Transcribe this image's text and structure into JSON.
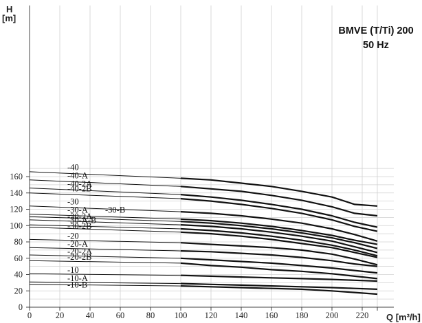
{
  "chart_data": {
    "type": "line",
    "title": "BMVE (T/Ti) 200",
    "subtitle": "50 Hz",
    "ylabel_line1": "H",
    "ylabel_line2": "[m]",
    "xlabel": "Q [m³/h]",
    "xlim": [
      0,
      230
    ],
    "ylim": [
      0,
      170
    ],
    "x_ticks": [
      0,
      20,
      40,
      60,
      80,
      100,
      120,
      140,
      160,
      180,
      200,
      220
    ],
    "y_ticks": [
      0,
      20,
      40,
      60,
      80,
      100,
      120,
      140,
      160
    ],
    "grid": true,
    "series": [
      {
        "name": "-40",
        "thin": [
          [
            0,
            166
          ],
          [
            100,
            158
          ]
        ],
        "thick": [
          [
            100,
            158
          ],
          [
            120,
            156
          ],
          [
            140,
            152
          ],
          [
            160,
            148
          ],
          [
            180,
            142
          ],
          [
            200,
            135
          ],
          [
            215,
            126
          ],
          [
            230,
            124
          ]
        ]
      },
      {
        "name": "-40-A",
        "thin": [
          [
            0,
            156
          ],
          [
            100,
            148
          ]
        ],
        "thick": [
          [
            100,
            148
          ],
          [
            120,
            145
          ],
          [
            140,
            142
          ],
          [
            160,
            137
          ],
          [
            180,
            131
          ],
          [
            200,
            123
          ],
          [
            215,
            115
          ],
          [
            230,
            112
          ]
        ]
      },
      {
        "name": "-40-2A",
        "thin": [
          [
            0,
            146
          ],
          [
            100,
            138
          ]
        ],
        "thick": [
          [
            100,
            138
          ],
          [
            120,
            135
          ],
          [
            140,
            131
          ],
          [
            160,
            126
          ],
          [
            180,
            120
          ],
          [
            200,
            112
          ],
          [
            215,
            104
          ],
          [
            230,
            98
          ]
        ]
      },
      {
        "name": "-40-2B",
        "thin": [
          [
            0,
            140
          ],
          [
            100,
            133
          ]
        ],
        "thick": [
          [
            100,
            133
          ],
          [
            120,
            130
          ],
          [
            140,
            126
          ],
          [
            160,
            121
          ],
          [
            180,
            115
          ],
          [
            200,
            107
          ],
          [
            215,
            99
          ],
          [
            230,
            93
          ]
        ]
      },
      {
        "name": "-30",
        "thin": [
          [
            0,
            124
          ],
          [
            100,
            117
          ]
        ],
        "thick": [
          [
            100,
            117
          ],
          [
            120,
            115
          ],
          [
            140,
            112
          ],
          [
            160,
            108
          ],
          [
            180,
            103
          ],
          [
            200,
            96
          ],
          [
            215,
            89
          ],
          [
            230,
            81
          ]
        ]
      },
      {
        "name": "-30-A",
        "thin": [
          [
            0,
            114
          ],
          [
            100,
            108
          ]
        ],
        "thick": [
          [
            100,
            108
          ],
          [
            120,
            106
          ],
          [
            140,
            103
          ],
          [
            160,
            99
          ],
          [
            180,
            94
          ],
          [
            200,
            88
          ],
          [
            215,
            82
          ],
          [
            230,
            77
          ]
        ]
      },
      {
        "name": "-30-B",
        "thin": [
          [
            0,
            111
          ],
          [
            100,
            105
          ]
        ],
        "thick": [
          [
            100,
            105
          ],
          [
            120,
            103
          ],
          [
            140,
            100
          ],
          [
            160,
            96
          ],
          [
            180,
            91
          ],
          [
            200,
            85
          ],
          [
            215,
            79
          ],
          [
            230,
            72
          ]
        ]
      },
      {
        "name": "-30-2A",
        "thin": [
          [
            0,
            107
          ],
          [
            100,
            101
          ]
        ],
        "thick": [
          [
            100,
            101
          ],
          [
            120,
            99
          ],
          [
            140,
            96
          ],
          [
            160,
            92
          ],
          [
            180,
            87
          ],
          [
            200,
            81
          ],
          [
            215,
            74
          ],
          [
            230,
            67
          ]
        ]
      },
      {
        "name": "-30-A-B",
        "thin": [
          [
            0,
            101
          ],
          [
            100,
            96
          ]
        ],
        "thick": [
          [
            100,
            96
          ],
          [
            120,
            94
          ],
          [
            140,
            91
          ],
          [
            160,
            87
          ],
          [
            180,
            82
          ],
          [
            200,
            76
          ],
          [
            215,
            70
          ],
          [
            230,
            63
          ]
        ]
      },
      {
        "name": "-30-2B",
        "thin": [
          [
            0,
            98
          ],
          [
            100,
            92
          ]
        ],
        "thick": [
          [
            100,
            92
          ],
          [
            120,
            90
          ],
          [
            140,
            87
          ],
          [
            160,
            83
          ],
          [
            180,
            78
          ],
          [
            200,
            73
          ],
          [
            215,
            67
          ],
          [
            230,
            61
          ]
        ]
      },
      {
        "name": "-20",
        "thin": [
          [
            0,
            83
          ],
          [
            100,
            79
          ]
        ],
        "thick": [
          [
            100,
            79
          ],
          [
            120,
            77
          ],
          [
            140,
            75
          ],
          [
            160,
            73
          ],
          [
            180,
            70
          ],
          [
            200,
            65
          ],
          [
            215,
            59
          ],
          [
            230,
            52
          ]
        ]
      },
      {
        "name": "-20-A",
        "thin": [
          [
            0,
            73
          ],
          [
            100,
            69
          ]
        ],
        "thick": [
          [
            100,
            69
          ],
          [
            120,
            68
          ],
          [
            140,
            66
          ],
          [
            160,
            64
          ],
          [
            180,
            61
          ],
          [
            200,
            57
          ],
          [
            215,
            53
          ],
          [
            230,
            50
          ]
        ]
      },
      {
        "name": "-20-2A",
        "thin": [
          [
            0,
            64
          ],
          [
            100,
            60
          ]
        ],
        "thick": [
          [
            100,
            60
          ],
          [
            120,
            58
          ],
          [
            140,
            56
          ],
          [
            160,
            54
          ],
          [
            180,
            51
          ],
          [
            200,
            48
          ],
          [
            215,
            45
          ],
          [
            230,
            42
          ]
        ]
      },
      {
        "name": "-20-2B",
        "thin": [
          [
            0,
            57
          ],
          [
            100,
            54
          ]
        ],
        "thick": [
          [
            100,
            54
          ],
          [
            120,
            51
          ],
          [
            140,
            49
          ],
          [
            160,
            46
          ],
          [
            180,
            44
          ],
          [
            200,
            41
          ],
          [
            215,
            38
          ],
          [
            230,
            35
          ]
        ]
      },
      {
        "name": "-10",
        "thin": [
          [
            0,
            41
          ],
          [
            100,
            39
          ]
        ],
        "thick": [
          [
            100,
            39
          ],
          [
            120,
            38
          ],
          [
            140,
            37
          ],
          [
            160,
            36
          ],
          [
            180,
            35
          ],
          [
            200,
            34
          ],
          [
            215,
            33
          ],
          [
            230,
            32
          ]
        ]
      },
      {
        "name": "-10-A",
        "thin": [
          [
            0,
            31
          ],
          [
            100,
            29
          ]
        ],
        "thick": [
          [
            100,
            29
          ],
          [
            120,
            28
          ],
          [
            140,
            27
          ],
          [
            160,
            26
          ],
          [
            180,
            25
          ],
          [
            200,
            24
          ],
          [
            215,
            23
          ],
          [
            230,
            22
          ]
        ]
      },
      {
        "name": "-10-B",
        "thin": [
          [
            0,
            28
          ],
          [
            100,
            26
          ]
        ],
        "thick": [
          [
            100,
            26
          ],
          [
            120,
            25
          ],
          [
            140,
            24
          ],
          [
            160,
            23
          ],
          [
            180,
            22
          ],
          [
            200,
            20
          ],
          [
            215,
            18
          ],
          [
            230,
            16
          ]
        ]
      }
    ],
    "labels": [
      {
        "text": "-40",
        "x": 25,
        "y": 168
      },
      {
        "text": "-40-A",
        "x": 25,
        "y": 158
      },
      {
        "text": "-40-2A",
        "x": 25,
        "y": 148
      },
      {
        "text": "-40-2B",
        "x": 25,
        "y": 142
      },
      {
        "text": "-30",
        "x": 25,
        "y": 126
      },
      {
        "text": "-30-A",
        "x": 25,
        "y": 116
      },
      {
        "text": "-30-B",
        "x": 50,
        "y": 116
      },
      {
        "text": "-30-2A",
        "x": 25,
        "y": 108
      },
      {
        "text": "-30-A-B",
        "x": 25,
        "y": 103
      },
      {
        "text": "-30-2B",
        "x": 25,
        "y": 96
      },
      {
        "text": "-20",
        "x": 25,
        "y": 84
      },
      {
        "text": "-20-A",
        "x": 25,
        "y": 74
      },
      {
        "text": "-20-2A",
        "x": 25,
        "y": 65
      },
      {
        "text": "-20-2B",
        "x": 25,
        "y": 58
      },
      {
        "text": "-10",
        "x": 25,
        "y": 42
      },
      {
        "text": "-10-A",
        "x": 25,
        "y": 32
      },
      {
        "text": "-10-B",
        "x": 25,
        "y": 24
      }
    ]
  }
}
